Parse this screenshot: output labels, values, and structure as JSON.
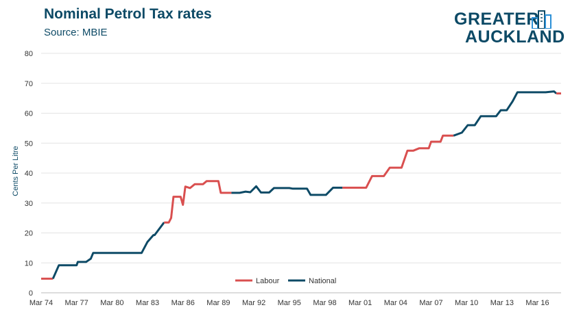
{
  "header": {
    "title": "Nominal Petrol Tax rates",
    "subtitle": "Source: MBIE"
  },
  "logo": {
    "line1": "GREATER",
    "line2": "AUCKLAND",
    "color": "#0d4a66"
  },
  "chart_data": {
    "type": "line",
    "title": "Nominal Petrol Tax rates",
    "subtitle": "Source: MBIE",
    "ylabel": "Cents Per Litre",
    "xlabel": "",
    "ylim": [
      0,
      80
    ],
    "yticks": [
      0,
      10,
      20,
      30,
      40,
      50,
      60,
      70,
      80
    ],
    "xlim": [
      1974.0,
      2018.0
    ],
    "xtick_labels": [
      "Mar 74",
      "Mar 77",
      "Mar 80",
      "Mar 83",
      "Mar 86",
      "Mar 89",
      "Mar 92",
      "Mar 95",
      "Mar 98",
      "Mar 01",
      "Mar 04",
      "Mar 07",
      "Mar 10",
      "Mar 13",
      "Mar 16"
    ],
    "xtick_values": [
      1974,
      1977,
      1980,
      1983,
      1986,
      1989,
      1992,
      1995,
      1998,
      2001,
      2004,
      2007,
      2010,
      2013,
      2016
    ],
    "grid": true,
    "legend_position": "bottom-center",
    "series": [
      {
        "name": "Labour",
        "color": "#d94f4f",
        "x": [
          1974.0,
          1975.0
        ],
        "y": [
          4.7,
          4.7
        ]
      },
      {
        "name": "National",
        "color": "#0d4a66",
        "x": [
          1975.0,
          1975.5,
          1976.4,
          1977.0,
          1977.1,
          1977.8,
          1978.2,
          1978.4,
          1979.5,
          1980.0,
          1982.5,
          1983.0,
          1983.5,
          1983.6,
          1984.4
        ],
        "y": [
          4.7,
          9.2,
          9.2,
          9.2,
          10.3,
          10.3,
          11.4,
          13.3,
          13.3,
          13.3,
          13.3,
          17.0,
          19.3,
          19.3,
          23.5
        ]
      },
      {
        "name": "Labour",
        "color": "#d94f4f",
        "x": [
          1984.4,
          1984.8,
          1985.0,
          1985.2,
          1985.8,
          1986.0,
          1986.2,
          1986.6,
          1987.0,
          1987.7,
          1988.0,
          1988.6,
          1989.0,
          1989.2,
          1989.8,
          1990.1
        ],
        "y": [
          23.5,
          23.5,
          25.0,
          32.1,
          32.1,
          29.4,
          35.5,
          35.0,
          36.3,
          36.3,
          37.3,
          37.3,
          37.3,
          33.4,
          33.4,
          33.4
        ]
      },
      {
        "name": "National",
        "color": "#0d4a66",
        "x": [
          1990.1,
          1990.8,
          1991.3,
          1991.7,
          1992.2,
          1992.6,
          1993.3,
          1993.7,
          1995.0,
          1995.3,
          1996.5,
          1996.8,
          1998.1,
          1998.7,
          1999.5
        ],
        "y": [
          33.4,
          33.4,
          33.8,
          33.6,
          35.6,
          33.5,
          33.5,
          35.0,
          35.0,
          34.8,
          34.8,
          32.7,
          32.7,
          35.1,
          35.1
        ]
      },
      {
        "name": "Labour",
        "color": "#d94f4f",
        "x": [
          1999.5,
          2000.0,
          2001.5,
          2002.0,
          2003.0,
          2003.5,
          2004.5,
          2005.0,
          2005.5,
          2006.0,
          2006.8,
          2007.0,
          2007.8,
          2008.0,
          2008.9
        ],
        "y": [
          35.1,
          35.1,
          35.1,
          39.0,
          39.0,
          41.8,
          41.8,
          47.5,
          47.5,
          48.3,
          48.3,
          50.5,
          50.5,
          52.5,
          52.5
        ]
      },
      {
        "name": "National",
        "color": "#0d4a66",
        "x": [
          2008.9,
          2009.6,
          2010.1,
          2010.7,
          2011.2,
          2012.5,
          2012.9,
          2013.4,
          2013.9,
          2014.3,
          2015.2,
          2015.7,
          2016.7,
          2017.4,
          2017.6
        ],
        "y": [
          52.5,
          53.5,
          56.0,
          56.0,
          59.0,
          59.0,
          61.0,
          61.0,
          64.0,
          67.0,
          67.0,
          67.0,
          67.0,
          67.3,
          66.6
        ]
      },
      {
        "name": "Labour",
        "color": "#d94f4f",
        "x": [
          2017.6,
          2018.0
        ],
        "y": [
          66.6,
          66.6
        ]
      }
    ],
    "legend": [
      {
        "name": "Labour",
        "color": "#d94f4f"
      },
      {
        "name": "National",
        "color": "#0d4a66"
      }
    ]
  }
}
